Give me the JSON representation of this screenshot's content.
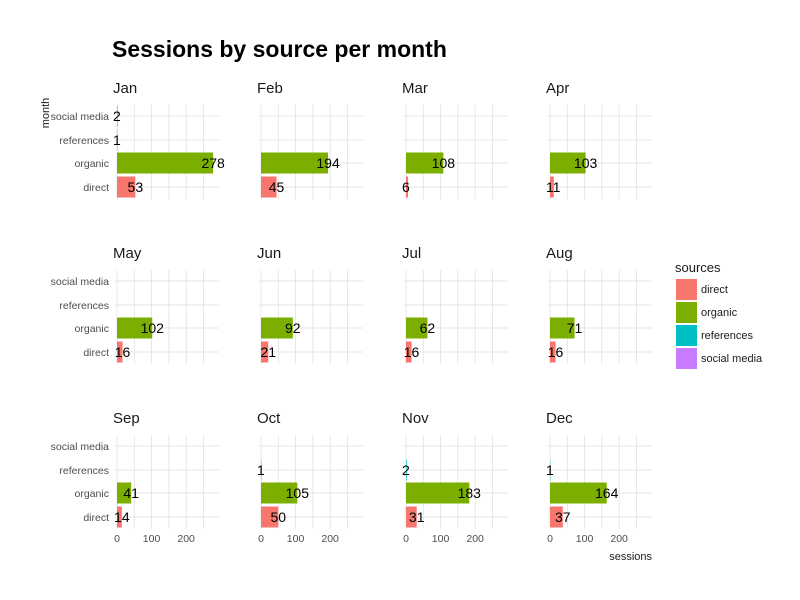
{
  "chart_data": {
    "type": "bar",
    "orientation": "horizontal",
    "faceted_by": "month",
    "title": "Sessions by source per month",
    "xlabel": "sessions",
    "ylabel": "month",
    "xlim": [
      0,
      295
    ],
    "xticks": [
      0,
      100,
      200
    ],
    "grid": true,
    "categories": [
      "direct",
      "organic",
      "references",
      "social media"
    ],
    "legend": {
      "title": "sources",
      "position": "right",
      "items": [
        {
          "label": "direct",
          "color": "#F8766D"
        },
        {
          "label": "organic",
          "color": "#7CAE00"
        },
        {
          "label": "references",
          "color": "#00BFC4"
        },
        {
          "label": "social media",
          "color": "#C77CFF"
        }
      ]
    },
    "facets": [
      {
        "name": "Jan",
        "values": {
          "direct": 53,
          "organic": 278,
          "references": 1,
          "social media": 2
        }
      },
      {
        "name": "Feb",
        "values": {
          "direct": 45,
          "organic": 194
        }
      },
      {
        "name": "Mar",
        "values": {
          "direct": 6,
          "organic": 108
        }
      },
      {
        "name": "Apr",
        "values": {
          "direct": 11,
          "organic": 103
        }
      },
      {
        "name": "May",
        "values": {
          "direct": 16,
          "organic": 102
        }
      },
      {
        "name": "Jun",
        "values": {
          "direct": 21,
          "organic": 92
        }
      },
      {
        "name": "Jul",
        "values": {
          "direct": 16,
          "organic": 62
        }
      },
      {
        "name": "Aug",
        "values": {
          "direct": 16,
          "organic": 71
        }
      },
      {
        "name": "Sep",
        "values": {
          "direct": 14,
          "organic": 41
        }
      },
      {
        "name": "Oct",
        "values": {
          "direct": 50,
          "organic": 105,
          "references": 1
        }
      },
      {
        "name": "Nov",
        "values": {
          "direct": 31,
          "organic": 183,
          "references": 2
        }
      },
      {
        "name": "Dec",
        "values": {
          "direct": 37,
          "organic": 164,
          "references": 1
        }
      }
    ]
  }
}
